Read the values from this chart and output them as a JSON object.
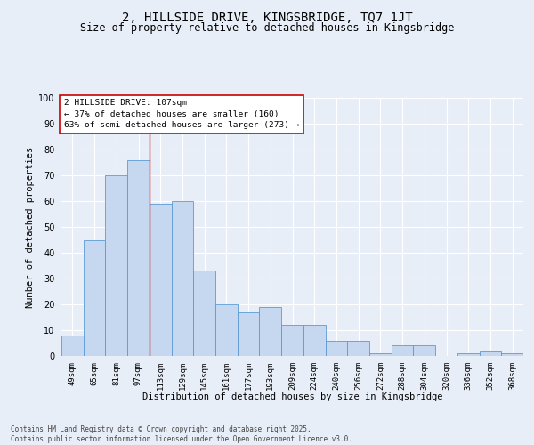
{
  "title": "2, HILLSIDE DRIVE, KINGSBRIDGE, TQ7 1JT",
  "subtitle": "Size of property relative to detached houses in Kingsbridge",
  "xlabel": "Distribution of detached houses by size in Kingsbridge",
  "ylabel": "Number of detached properties",
  "categories": [
    "49sqm",
    "65sqm",
    "81sqm",
    "97sqm",
    "113sqm",
    "129sqm",
    "145sqm",
    "161sqm",
    "177sqm",
    "193sqm",
    "209sqm",
    "224sqm",
    "240sqm",
    "256sqm",
    "272sqm",
    "288sqm",
    "304sqm",
    "320sqm",
    "336sqm",
    "352sqm",
    "368sqm"
  ],
  "values": [
    8,
    45,
    70,
    76,
    59,
    60,
    33,
    20,
    17,
    19,
    12,
    12,
    6,
    6,
    1,
    4,
    4,
    0,
    1,
    2,
    1
  ],
  "bar_color": "#c5d8f0",
  "bar_edge_color": "#5a9bd5",
  "vline_x": 3.5,
  "vline_color": "#cc0000",
  "ann_line1": "2 HILLSIDE DRIVE: 107sqm",
  "ann_line2": "← 37% of detached houses are smaller (160)",
  "ann_line3": "63% of semi-detached houses are larger (273) →",
  "ann_box_fc": "#ffffff",
  "ann_box_ec": "#cc0000",
  "ylim": [
    0,
    100
  ],
  "yticks": [
    0,
    10,
    20,
    30,
    40,
    50,
    60,
    70,
    80,
    90,
    100
  ],
  "bg_color": "#e8eef7",
  "grid_color": "#ffffff",
  "footer": "Contains HM Land Registry data © Crown copyright and database right 2025.\nContains public sector information licensed under the Open Government Licence v3.0.",
  "title_fs": 10,
  "subtitle_fs": 8.5,
  "ylabel_fs": 7.5,
  "xlabel_fs": 7.5,
  "tick_fs": 6.5,
  "ann_fs": 6.8,
  "footer_fs": 5.5
}
